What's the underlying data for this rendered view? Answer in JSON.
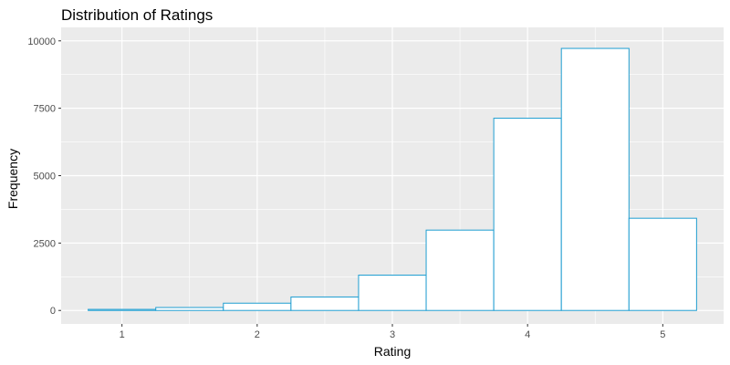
{
  "chart_data": {
    "type": "bar",
    "title": "Distribution of Ratings",
    "xlabel": "Rating",
    "ylabel": "Frequency",
    "bins": [
      {
        "start": 0.75,
        "end": 1.25,
        "value": 40
      },
      {
        "start": 1.25,
        "end": 1.75,
        "value": 110
      },
      {
        "start": 1.75,
        "end": 2.25,
        "value": 270
      },
      {
        "start": 2.25,
        "end": 2.75,
        "value": 500
      },
      {
        "start": 2.75,
        "end": 3.25,
        "value": 1310
      },
      {
        "start": 3.25,
        "end": 3.75,
        "value": 2980
      },
      {
        "start": 3.75,
        "end": 4.25,
        "value": 7130
      },
      {
        "start": 4.25,
        "end": 4.75,
        "value": 9720
      },
      {
        "start": 4.75,
        "end": 5.25,
        "value": 3420
      }
    ],
    "x_ticks": [
      1,
      2,
      3,
      4,
      5
    ],
    "y_ticks": [
      0,
      2500,
      5000,
      7500,
      10000
    ],
    "xlim": [
      0.55,
      5.45
    ],
    "ylim": [
      -500,
      10500
    ],
    "grid": true,
    "colors": {
      "panel_background": "#EBEBEB",
      "grid": "#FFFFFF",
      "bar_fill": "#FFFFFF",
      "bar_outline": "#1F9ED1"
    }
  }
}
